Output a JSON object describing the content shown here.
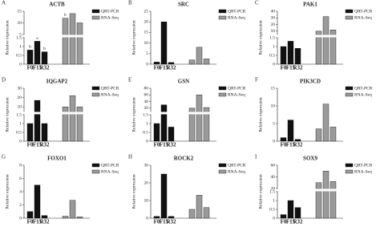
{
  "chart_data": [
    {
      "type": "bar",
      "panel": "A",
      "title": "ACTB",
      "ylabel": "Relative expression",
      "categories": [
        "F0",
        "F15",
        "R32"
      ],
      "series": [
        {
          "name": "QRT-PCR",
          "color": "#111111",
          "values": [
            0.8,
            1.3,
            0.7
          ],
          "letters": [
            "b",
            "a",
            "b"
          ]
        },
        {
          "name": "RNA-Seq",
          "color": "#9a9a9a",
          "values": [
            12,
            14,
            10
          ],
          "letters": [
            "b",
            null,
            null
          ]
        }
      ],
      "ylim": [
        0,
        15
      ],
      "ybreak": [
        1.5,
        5
      ],
      "yticks": [
        0,
        0.5,
        1,
        1.5,
        5,
        10,
        15
      ]
    },
    {
      "type": "bar",
      "panel": "B",
      "title": "SRC",
      "ylabel": "Relative expression",
      "categories": [
        "F0",
        "F15",
        "R32"
      ],
      "series": [
        {
          "name": "QRT-PCR",
          "color": "#111111",
          "values": [
            1,
            20,
            0.8
          ]
        },
        {
          "name": "RNA-Seq",
          "color": "#9a9a9a",
          "values": [
            2,
            8,
            2.5
          ]
        }
      ],
      "ylim": [
        0,
        25
      ],
      "yticks": [
        0,
        5,
        10,
        15,
        20,
        25
      ]
    },
    {
      "type": "bar",
      "panel": "C",
      "title": "PAK1",
      "ylabel": "Relative expression",
      "categories": [
        "F0",
        "F15",
        "R32"
      ],
      "series": [
        {
          "name": "QRT-PCR",
          "color": "#111111",
          "values": [
            1,
            1.3,
            0.9
          ]
        },
        {
          "name": "RNA-Seq",
          "color": "#9a9a9a",
          "values": [
            10,
            32,
            12
          ]
        }
      ],
      "ylim": [
        0,
        40
      ],
      "ybreak": [
        1.5,
        5
      ],
      "yticks": [
        0,
        0.5,
        1,
        1.5,
        10,
        20,
        30,
        40
      ]
    },
    {
      "type": "bar",
      "panel": "D",
      "title": "IQGAP2",
      "ylabel": "Relative expression",
      "categories": [
        "F0",
        "F15",
        "R32"
      ],
      "series": [
        {
          "name": "QRT-PCR",
          "color": "#111111",
          "values": [
            1,
            17,
            1
          ]
        },
        {
          "name": "RNA-Seq",
          "color": "#9a9a9a",
          "values": [
            10,
            22,
            10
          ]
        }
      ],
      "ylim": [
        0,
        30
      ],
      "ybreak": [
        1.5,
        5
      ],
      "yticks": [
        0,
        0.5,
        1,
        1.5,
        10,
        20,
        30
      ]
    },
    {
      "type": "bar",
      "panel": "E",
      "title": "GSN",
      "ylabel": "Relative expression",
      "categories": [
        "F0",
        "F15",
        "R32"
      ],
      "series": [
        {
          "name": "QRT-PCR",
          "color": "#111111",
          "values": [
            1,
            30,
            0.8
          ]
        },
        {
          "name": "RNA-Seq",
          "color": "#9a9a9a",
          "values": [
            20,
            60,
            22
          ]
        }
      ],
      "ylim": [
        0,
        80
      ],
      "ybreak": [
        1.5,
        10
      ],
      "yticks": [
        0,
        0.5,
        1,
        1.5,
        20,
        40,
        60,
        80
      ]
    },
    {
      "type": "bar",
      "panel": "F",
      "title": "PIK3CD",
      "ylabel": "Relative expression",
      "categories": [
        "F0",
        "F15",
        "R32"
      ],
      "series": [
        {
          "name": "QRT-PCR",
          "color": "#111111",
          "values": [
            1,
            6,
            0.5
          ]
        },
        {
          "name": "RNA-Seq",
          "color": "#9a9a9a",
          "values": [
            3.5,
            10.5,
            4
          ]
        }
      ],
      "ylim": [
        0,
        15
      ],
      "yticks": [
        0,
        5,
        10,
        15
      ]
    },
    {
      "type": "bar",
      "panel": "G",
      "title": "FOXO1",
      "ylabel": "Relative expression",
      "categories": [
        "F0",
        "F15",
        "R32"
      ],
      "series": [
        {
          "name": "QRT-PCR",
          "color": "#111111",
          "values": [
            1,
            5,
            0.4
          ]
        },
        {
          "name": "RNA-Seq",
          "color": "#9a9a9a",
          "values": [
            0.3,
            2.7,
            0.2
          ]
        }
      ],
      "ylim": [
        0,
        8
      ],
      "yticks": [
        0,
        2,
        4,
        6,
        8
      ]
    },
    {
      "type": "bar",
      "panel": "H",
      "title": "ROCK2",
      "ylabel": "Relative expression",
      "categories": [
        "F0",
        "F15",
        "R32"
      ],
      "series": [
        {
          "name": "QRT-PCR",
          "color": "#111111",
          "values": [
            1,
            25,
            1
          ]
        },
        {
          "name": "RNA-Seq",
          "color": "#9a9a9a",
          "values": [
            5,
            13,
            6
          ]
        }
      ],
      "ylim": [
        0,
        30
      ],
      "yticks": [
        0,
        10,
        20,
        30
      ]
    },
    {
      "type": "bar",
      "panel": "I",
      "title": "SOX9",
      "ylabel": "Relative expression",
      "categories": [
        "F0",
        "F15",
        "R32"
      ],
      "series": [
        {
          "name": "QRT-PCR",
          "color": "#111111",
          "values": [
            0.2,
            1,
            0.6
          ]
        },
        {
          "name": "RNA-Seq",
          "color": "#9a9a9a",
          "values": [
            30,
            50,
            32
          ]
        }
      ],
      "ylim": [
        0,
        60
      ],
      "ybreak": [
        1.5,
        20
      ],
      "yticks": [
        0,
        0.5,
        1,
        1.5,
        20,
        40,
        60
      ]
    }
  ]
}
